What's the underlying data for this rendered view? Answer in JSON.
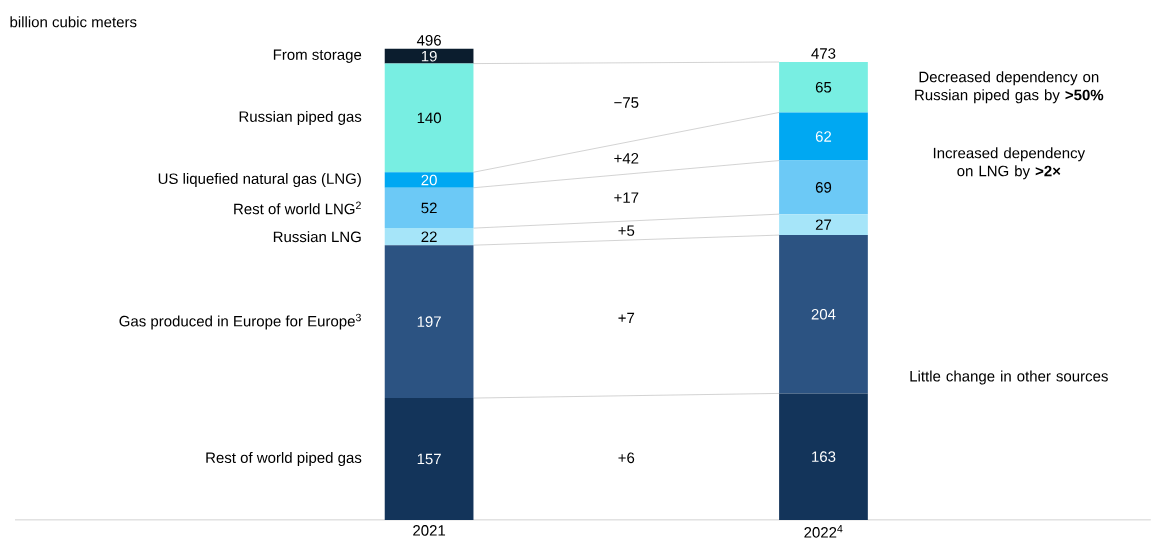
{
  "chart_data": {
    "type": "bar",
    "stacked": true,
    "data_labels": true,
    "ylabel": "billion cubic meters",
    "categories": [
      "2021",
      "2022$^{4}$"
    ],
    "series": [
      {
        "name": "Rest of world piped gas",
        "color": "#13345a",
        "values": [
          157,
          163
        ]
      },
      {
        "name": "Gas produced in Europe for Europe$^{3}$",
        "color": "#2c5382",
        "values": [
          197,
          204
        ]
      },
      {
        "name": "Russian LNG",
        "color": "#a6e5f9",
        "values": [
          22,
          27
        ]
      },
      {
        "name": "Rest of world LNG$^{2}$",
        "color": "#6cc9f6",
        "values": [
          52,
          69
        ]
      },
      {
        "name": "US liquefied natural gas (LNG)",
        "color": "#00a8f2",
        "values": [
          20,
          62
        ]
      },
      {
        "name": "Russian piped gas",
        "color": "#78eee2",
        "values": [
          140,
          65
        ]
      },
      {
        "name": "From storage",
        "color": "#0b1d2e",
        "values": [
          19,
          null
        ]
      }
    ],
    "annotations": [
      "496",
      "473",
      "−75",
      "+42",
      "+17",
      "+5",
      "+7",
      "+6",
      "Decreased dependency on Russian piped gas by **>50%**",
      "Increased dependency on LNG by **>2×**",
      "Little change in other sources"
    ]
  }
}
